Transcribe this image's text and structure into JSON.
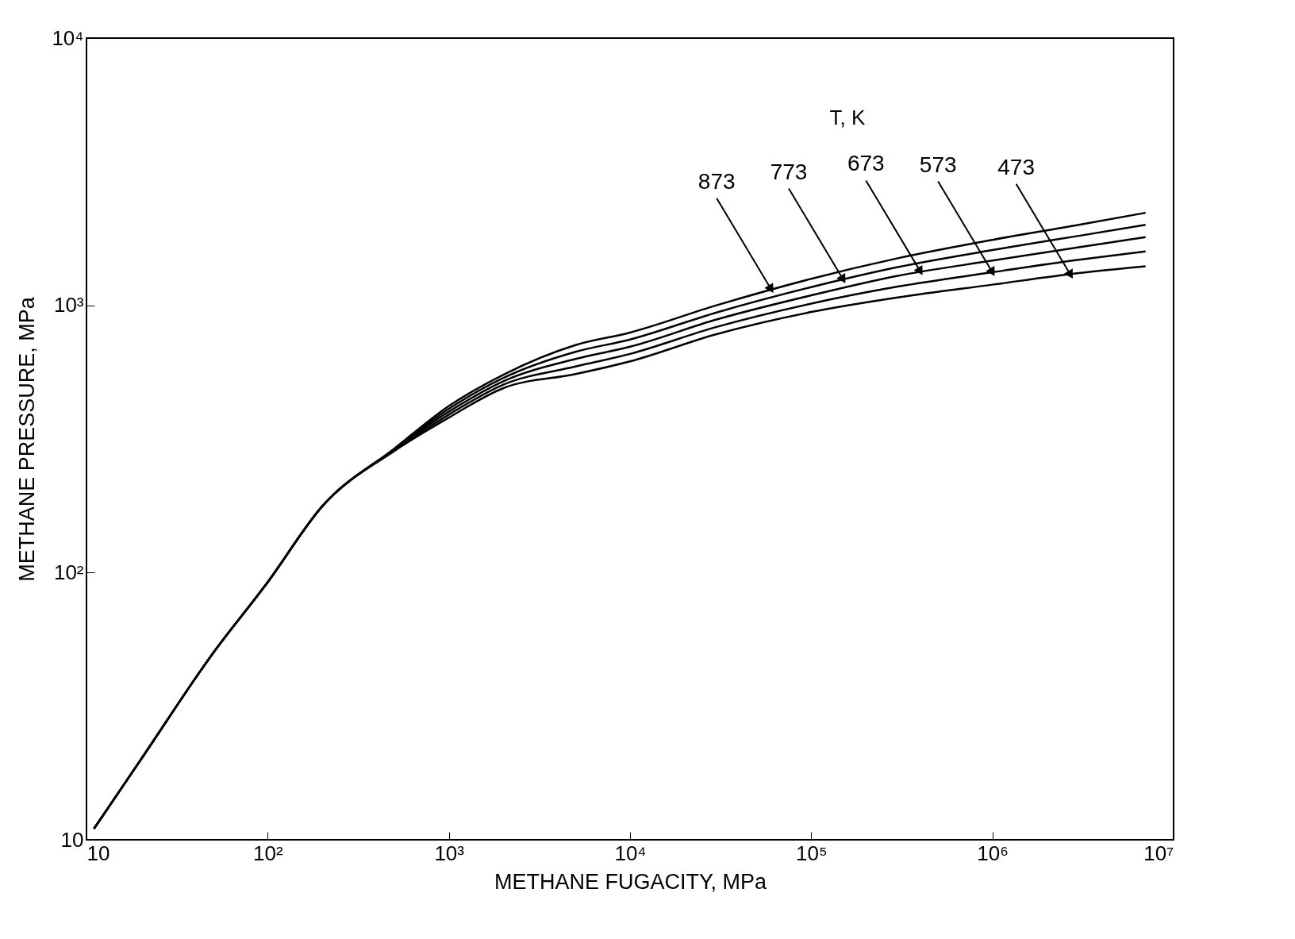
{
  "chart_data": {
    "type": "line",
    "xlabel": "METHANE FUGACITY, MPa",
    "ylabel": "METHANE PRESSURE, MPa",
    "log": "xy",
    "x": [
      11,
      20,
      50,
      100,
      200,
      500,
      1000,
      2000,
      5000,
      10000,
      30000,
      100000,
      300000,
      1000000,
      3000000,
      7000000
    ],
    "series": [
      {
        "color": "#000000",
        "values": [
          11,
          20,
          50,
          92,
          177,
          291,
          420,
          550,
          710,
          791,
          1000,
          1257,
          1500,
          1758,
          2000,
          2220
        ]
      },
      {
        "color": "#000000",
        "values": [
          11,
          20,
          50,
          92,
          177,
          290,
          410,
          535,
          670,
          745,
          940,
          1170,
          1390,
          1610,
          1820,
          2000
        ]
      },
      {
        "color": "#000000",
        "values": [
          11,
          20,
          50,
          92,
          177,
          289,
          400,
          520,
          630,
          700,
          885,
          1090,
          1290,
          1470,
          1650,
          1800
        ]
      },
      {
        "color": "#000000",
        "values": [
          11,
          20,
          50,
          92,
          177,
          287,
          390,
          505,
          590,
          658,
          830,
          1015,
          1175,
          1330,
          1480,
          1590
        ]
      },
      {
        "color": "#000000",
        "values": [
          11,
          20,
          50,
          92,
          177,
          285,
          380,
          490,
          553,
          617,
          780,
          944,
          1070,
          1195,
          1320,
          1400
        ]
      }
    ],
    "annotations": [
      "T, K",
      {
        "text": "873",
        "x": 60000,
        "y": 1150
      },
      {
        "text": "773",
        "x": 150000,
        "y": 1250
      },
      {
        "text": "673",
        "x": 400000,
        "y": 1340
      },
      {
        "text": "573",
        "x": 1000000,
        "y": 1330
      },
      {
        "text": "473",
        "x": 2700000,
        "y": 1300
      }
    ],
    "xlim": [
      10,
      10000000
    ],
    "xticks": [
      10,
      {
        "value": 100,
        "label": "10²"
      },
      {
        "value": 1000,
        "label": "10³"
      },
      {
        "value": 10000,
        "label": "10⁴"
      },
      {
        "value": 100000,
        "label": "10⁵"
      },
      {
        "value": 1000000,
        "label": "10⁶"
      },
      {
        "value": 10000000,
        "label": "10⁷"
      }
    ],
    "ylim": [
      10,
      10000
    ],
    "yticks": [
      10,
      {
        "value": 100,
        "label": "10²"
      },
      {
        "value": 1000,
        "label": "10³"
      },
      {
        "value": 10000,
        "label": "10⁴"
      }
    ],
    "grid": false,
    "legend": false,
    "marker": "none",
    "line_style": "solid"
  }
}
